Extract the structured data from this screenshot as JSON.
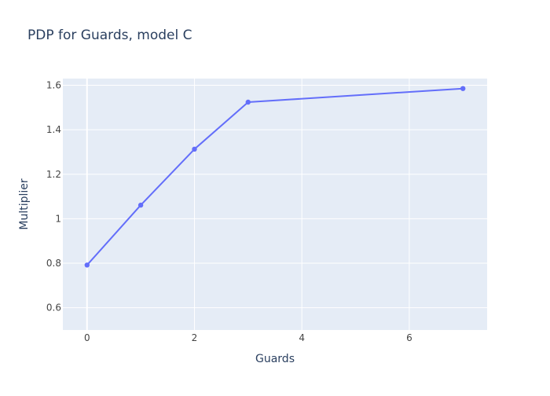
{
  "chart_data": {
    "type": "line",
    "title": "PDP for Guards, model C",
    "xlabel": "Guards",
    "ylabel": "Multiplier",
    "x": [
      0,
      1,
      2,
      3,
      7
    ],
    "series": [
      {
        "values": [
          0.792,
          1.061,
          1.313,
          1.524,
          1.585
        ],
        "mode": "lines+markers"
      }
    ],
    "xlim": [
      -0.45,
      7.45
    ],
    "ylim": [
      0.5,
      1.63
    ],
    "xticks": [
      0,
      2,
      4,
      6
    ],
    "xtick_labels": [
      "0",
      "2",
      "4",
      "6"
    ],
    "yticks": [
      0.6,
      0.8,
      1.0,
      1.2,
      1.4,
      1.6
    ],
    "ytick_labels": [
      "0.6",
      "0.8",
      "1",
      "1.2",
      "1.4",
      "1.6"
    ],
    "grid": true,
    "legend": "none",
    "colors": {
      "plot_background": "#E5ECF6",
      "grid": "#FFFFFF",
      "series": "#636EFA",
      "text": "#2A3F5F",
      "tick_text": "#444444"
    }
  }
}
